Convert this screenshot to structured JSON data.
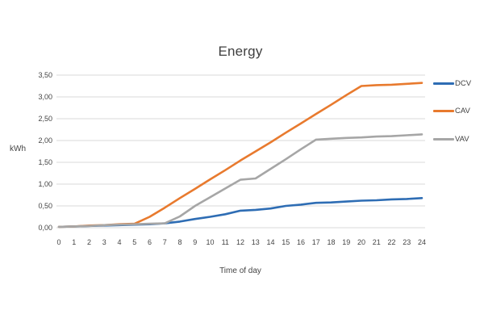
{
  "chart_data": {
    "type": "line",
    "title": "Energy",
    "xlabel": "Time of day",
    "ylabel": "kWh",
    "x": [
      0,
      1,
      2,
      3,
      4,
      5,
      6,
      7,
      8,
      9,
      10,
      11,
      12,
      13,
      14,
      15,
      16,
      17,
      18,
      19,
      20,
      21,
      22,
      23,
      24
    ],
    "x_tick_labels": [
      "0",
      "1",
      "2",
      "3",
      "4",
      "5",
      "6",
      "7",
      "8",
      "9",
      "10",
      "11",
      "12",
      "13",
      "14",
      "15",
      "16",
      "17",
      "18",
      "19",
      "20",
      "21",
      "22",
      "23",
      "24"
    ],
    "y_ticks": [
      0,
      0.5,
      1,
      1.5,
      2,
      2.5,
      3,
      3.5
    ],
    "y_tick_labels": [
      "0,00",
      "0,50",
      "1,00",
      "1,50",
      "2,00",
      "2,50",
      "3,00",
      "3,50"
    ],
    "ylim": [
      0,
      3.5
    ],
    "grid": true,
    "legend_position": "right",
    "series": [
      {
        "name": "DCV",
        "color": "#2E6DB4",
        "values": [
          0.02,
          0.03,
          0.04,
          0.05,
          0.06,
          0.07,
          0.08,
          0.1,
          0.14,
          0.2,
          0.25,
          0.31,
          0.39,
          0.41,
          0.44,
          0.5,
          0.53,
          0.57,
          0.58,
          0.6,
          0.62,
          0.63,
          0.65,
          0.66,
          0.68
        ]
      },
      {
        "name": "CAV",
        "color": "#E87A2E",
        "values": [
          0.02,
          0.03,
          0.05,
          0.06,
          0.08,
          0.09,
          0.25,
          0.46,
          0.68,
          0.89,
          1.11,
          1.32,
          1.54,
          1.75,
          1.96,
          2.18,
          2.39,
          2.61,
          2.82,
          3.04,
          3.25,
          3.27,
          3.28,
          3.3,
          3.32
        ]
      },
      {
        "name": "VAV",
        "color": "#A6A6A6",
        "values": [
          0.02,
          0.03,
          0.04,
          0.06,
          0.07,
          0.08,
          0.09,
          0.1,
          0.26,
          0.5,
          0.7,
          0.9,
          1.1,
          1.13,
          1.35,
          1.57,
          1.8,
          2.02,
          2.04,
          2.06,
          2.07,
          2.09,
          2.1,
          2.12,
          2.14
        ]
      }
    ],
    "gridline_color": "#D9D9D9",
    "text_color": "#404040"
  }
}
